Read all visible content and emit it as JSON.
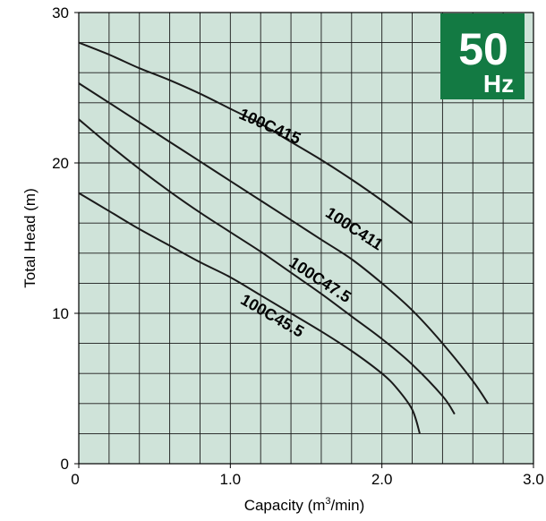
{
  "chart_data": {
    "type": "line",
    "xlabel": "Capacity (m",
    "xlabel_sup": "3",
    "xlabel_end": "/min)",
    "ylabel": "Total Head (m)",
    "xlim": [
      0,
      3.0
    ],
    "ylim": [
      0,
      30
    ],
    "x_ticks": [
      "0",
      "1.0",
      "2.0",
      "3.0"
    ],
    "y_ticks": [
      "0",
      "10",
      "20",
      "30"
    ],
    "grid": true,
    "minor_grid_x_step": 0.2,
    "minor_grid_y_step": 2,
    "plot_background": "#cfe3d9",
    "line_color": "#1a1a1a",
    "badge": {
      "value": "50",
      "unit": "Hz",
      "color": "#137a43"
    },
    "series": [
      {
        "name": "100C415",
        "label_angle": 24,
        "x": [
          0,
          0.2,
          0.4,
          0.6,
          0.8,
          1.0,
          1.2,
          1.4,
          1.6,
          1.8,
          2.0,
          2.2
        ],
        "y": [
          28,
          27.2,
          26.3,
          25.5,
          24.6,
          23.6,
          22.6,
          21.4,
          20.2,
          18.9,
          17.5,
          16.0
        ]
      },
      {
        "name": "100C411",
        "label_angle": 33,
        "x": [
          0,
          0.2,
          0.4,
          0.6,
          0.8,
          1.0,
          1.2,
          1.4,
          1.6,
          1.8,
          2.0,
          2.2,
          2.4,
          2.6,
          2.7
        ],
        "y": [
          25.3,
          24.0,
          22.7,
          21.4,
          20.1,
          18.8,
          17.5,
          16.2,
          14.9,
          13.6,
          12.0,
          10.2,
          8.0,
          5.5,
          4.0
        ]
      },
      {
        "name": "100C47.5",
        "label_angle": 33,
        "x": [
          0,
          0.2,
          0.4,
          0.6,
          0.8,
          1.0,
          1.2,
          1.4,
          1.6,
          1.8,
          2.0,
          2.2,
          2.4,
          2.48
        ],
        "y": [
          22.9,
          21.2,
          19.6,
          18.1,
          16.7,
          15.4,
          14.1,
          12.7,
          11.3,
          9.8,
          8.3,
          6.6,
          4.5,
          3.3
        ]
      },
      {
        "name": "100C45.5",
        "label_angle": 30,
        "x": [
          0,
          0.2,
          0.4,
          0.6,
          0.8,
          1.0,
          1.2,
          1.4,
          1.6,
          1.8,
          2.0,
          2.1,
          2.2,
          2.25
        ],
        "y": [
          18.0,
          16.8,
          15.6,
          14.5,
          13.4,
          12.4,
          11.2,
          10.0,
          8.8,
          7.5,
          6.0,
          5.0,
          3.6,
          2.0
        ]
      }
    ],
    "label_positions": [
      {
        "series": "100C415",
        "x": 1.05,
        "y": 23.0
      },
      {
        "series": "100C411",
        "x": 1.62,
        "y": 16.5
      },
      {
        "series": "100C47.5",
        "x": 1.38,
        "y": 13.2
      },
      {
        "series": "100C45.5",
        "x": 1.06,
        "y": 10.7
      }
    ]
  }
}
